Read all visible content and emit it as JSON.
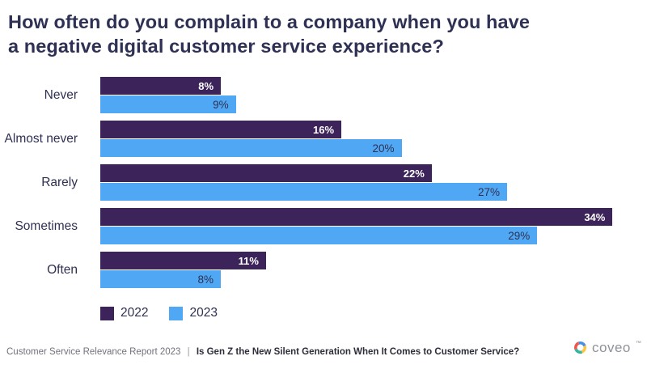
{
  "title": {
    "lines": [
      "How often do you complain to a company when you have",
      "a negative digital customer service experience?"
    ]
  },
  "chart_data": {
    "type": "bar",
    "orientation": "horizontal",
    "categories": [
      "Never",
      "Almost never",
      "Rarely",
      "Sometimes",
      "Often"
    ],
    "series": [
      {
        "name": "2022",
        "color": "#3C2359",
        "values": [
          8,
          16,
          22,
          34,
          11
        ]
      },
      {
        "name": "2023",
        "color": "#50A8F4",
        "values": [
          9,
          20,
          27,
          29,
          8
        ]
      }
    ],
    "value_suffix": "%",
    "xlim": [
      0,
      35
    ],
    "xlabel": "",
    "ylabel": "",
    "grid": false,
    "legend_position": "bottom-left",
    "value_labels": "inside-end"
  },
  "footer": {
    "source": "Customer Service Relevance Report 2023",
    "separator": "|",
    "headline": "Is Gen Z the New Silent Generation When It Comes to Customer Service?"
  },
  "branding": {
    "logo_text": "coveo",
    "trademark": "™",
    "icon": "coveo-pinwheel-icon",
    "icon_colors": {
      "red": "#F0564B",
      "blue": "#4A90E2",
      "yellow": "#FFC53D",
      "teal": "#30B5A0"
    }
  },
  "colors": {
    "title": "#2E3154",
    "category_label": "#2F3052",
    "bar_2022": "#3C2359",
    "bar_2023": "#50A8F4",
    "value_on_2022": "#FFFFFF",
    "value_on_2023": "#2E3153",
    "footer_source": "#71717C",
    "footer_headline": "#2E2E3A",
    "coveo_gray": "#8F9298"
  }
}
